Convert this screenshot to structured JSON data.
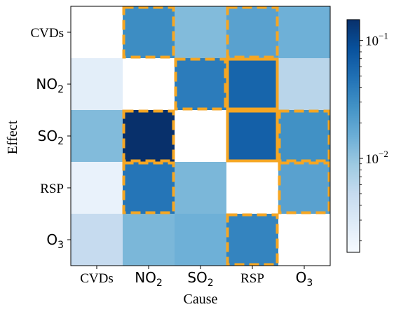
{
  "chart_data": {
    "type": "heatmap",
    "xlabel": "Cause",
    "ylabel": "Effect",
    "x_categories": [
      {
        "text": "CVDs",
        "sub": "",
        "style": "serif"
      },
      {
        "text": "NO",
        "sub": "2",
        "style": "sans"
      },
      {
        "text": "SO",
        "sub": "2",
        "style": "sans"
      },
      {
        "text": "RSP",
        "sub": "",
        "style": "serif"
      },
      {
        "text": "O",
        "sub": "3",
        "style": "sans"
      }
    ],
    "y_categories": [
      {
        "text": "CVDs",
        "sub": "",
        "style": "serif"
      },
      {
        "text": "NO",
        "sub": "2",
        "style": "sans"
      },
      {
        "text": "SO",
        "sub": "2",
        "style": "sans"
      },
      {
        "text": "RSP",
        "sub": "",
        "style": "serif"
      },
      {
        "text": "O",
        "sub": "3",
        "style": "sans"
      }
    ],
    "values": [
      [
        null,
        0.03,
        0.012,
        0.02,
        0.015
      ],
      [
        0.0025,
        null,
        0.04,
        0.06,
        0.006
      ],
      [
        0.012,
        0.15,
        null,
        0.065,
        0.028
      ],
      [
        0.0022,
        0.045,
        0.013,
        null,
        0.02
      ],
      [
        0.005,
        0.013,
        0.015,
        0.035,
        null
      ]
    ],
    "highlights": [
      {
        "row": 0,
        "col": 1,
        "style": "dashed"
      },
      {
        "row": 0,
        "col": 3,
        "style": "dashed"
      },
      {
        "row": 1,
        "col": 2,
        "style": "dashed"
      },
      {
        "row": 1,
        "col": 3,
        "style": "solid"
      },
      {
        "row": 2,
        "col": 1,
        "style": "dashed"
      },
      {
        "row": 2,
        "col": 3,
        "style": "solid"
      },
      {
        "row": 2,
        "col": 4,
        "style": "dashed"
      },
      {
        "row": 3,
        "col": 1,
        "style": "dashed"
      },
      {
        "row": 3,
        "col": 4,
        "style": "dashed"
      },
      {
        "row": 4,
        "col": 3,
        "style": "dashed"
      }
    ],
    "colorbar": {
      "scale": "log",
      "range": [
        0.0016,
        0.15
      ],
      "colormap": "Blues",
      "ticks": [
        {
          "base": "10",
          "exp": "−1"
        },
        {
          "base": "10",
          "exp": "−2"
        }
      ]
    },
    "highlight_color": "#f5a623"
  }
}
